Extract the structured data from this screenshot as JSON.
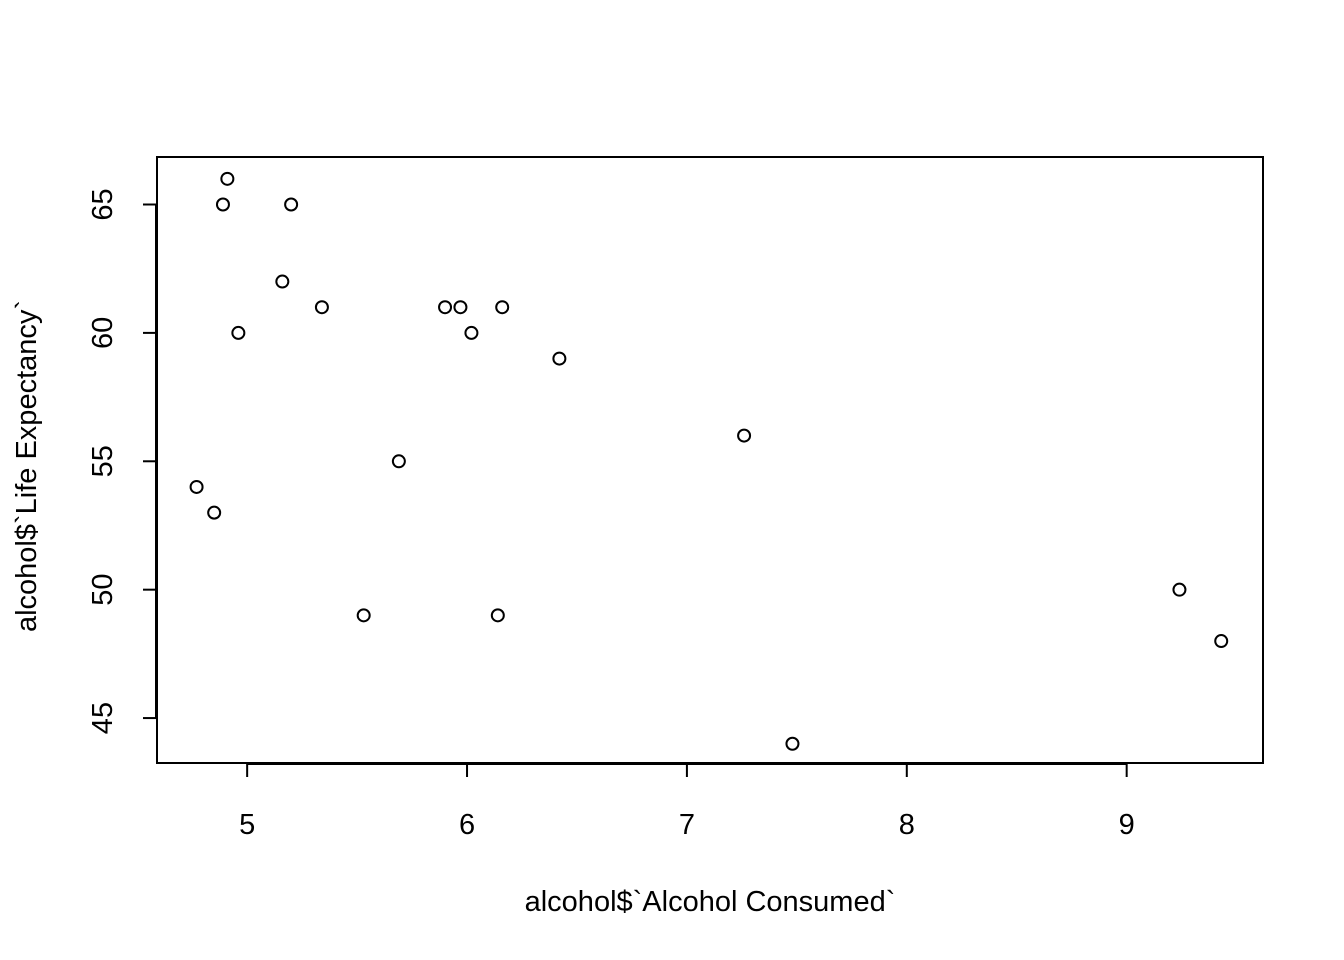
{
  "chart_data": {
    "type": "scatter",
    "title": "",
    "xlabel": "alcohol$`Alcohol Consumed`",
    "ylabel": "alcohol$`Life Expectancy`",
    "xlim": [
      4.59,
      9.62
    ],
    "ylim": [
      43.25,
      66.85
    ],
    "xticks": [
      5,
      6,
      7,
      8,
      9
    ],
    "yticks": [
      45,
      50,
      55,
      60,
      65
    ],
    "grid": false,
    "legend": "none",
    "marker": "open-circle",
    "points": [
      {
        "x": 4.77,
        "y": 54
      },
      {
        "x": 4.85,
        "y": 53
      },
      {
        "x": 4.89,
        "y": 65
      },
      {
        "x": 4.91,
        "y": 66
      },
      {
        "x": 4.96,
        "y": 60
      },
      {
        "x": 5.16,
        "y": 62
      },
      {
        "x": 5.2,
        "y": 65
      },
      {
        "x": 5.34,
        "y": 61
      },
      {
        "x": 5.53,
        "y": 49
      },
      {
        "x": 5.69,
        "y": 55
      },
      {
        "x": 5.9,
        "y": 61
      },
      {
        "x": 5.97,
        "y": 61
      },
      {
        "x": 6.02,
        "y": 60
      },
      {
        "x": 6.14,
        "y": 49
      },
      {
        "x": 6.16,
        "y": 61
      },
      {
        "x": 6.42,
        "y": 59
      },
      {
        "x": 7.26,
        "y": 56
      },
      {
        "x": 7.48,
        "y": 44
      },
      {
        "x": 9.24,
        "y": 50
      },
      {
        "x": 9.43,
        "y": 48
      }
    ],
    "colors": {
      "marker": "#000000",
      "axis": "#000000",
      "background": "#ffffff"
    }
  }
}
